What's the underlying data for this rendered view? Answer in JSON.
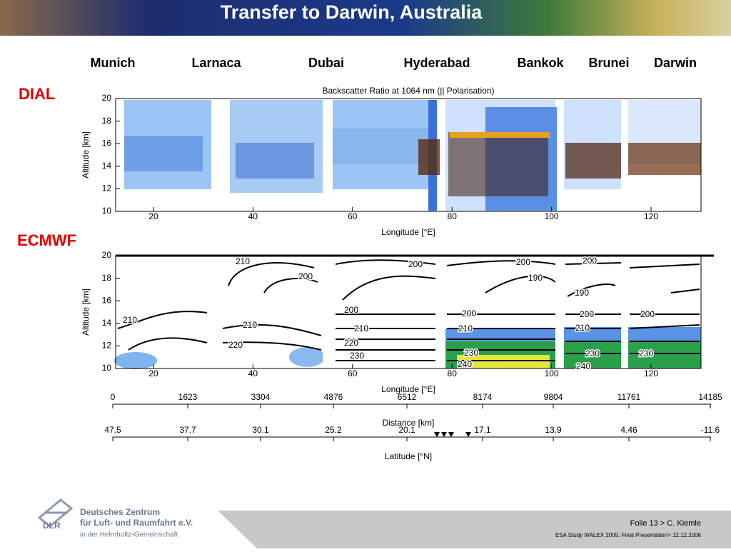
{
  "header": {
    "title": "Transfer to Darwin, Australia"
  },
  "cities": [
    "Munich",
    "Larnaca",
    "Dubai",
    "Hyderabad",
    "Bankok",
    "Brunei",
    "Darwin"
  ],
  "sections": {
    "dial": "DIAL",
    "ecmwf": "ECMWF"
  },
  "dial_plot": {
    "title": "Backscatter Ratio at 1064 nm    (|| Polarisation)",
    "y_label": "Altitude [km]",
    "x_label": "Longitude [°E]",
    "yticks": [
      10,
      12,
      14,
      16,
      18,
      20
    ],
    "xticks": [
      20,
      40,
      60,
      80,
      100,
      120
    ]
  },
  "ecmwf_plot": {
    "y_label": "Altitude [km]",
    "x_label": "Longitude [°E]",
    "yticks": [
      10,
      12,
      14,
      16,
      18,
      20
    ],
    "xticks": [
      20,
      40,
      60,
      80,
      100,
      120
    ],
    "contour_labels": [
      210,
      210,
      200,
      210,
      220,
      200,
      200,
      210,
      220,
      230,
      200,
      210,
      230,
      200,
      190,
      190,
      200,
      200,
      210,
      230,
      240,
      200,
      230,
      240
    ]
  },
  "distance_axis": {
    "label": "Distance [km]",
    "ticks": [
      0,
      1623,
      3304,
      4876,
      6512,
      8174,
      9804,
      11761,
      14185
    ]
  },
  "latitude_axis": {
    "label": "Latitude [°N]",
    "ticks": [
      47.5,
      37.7,
      30.1,
      25.2,
      20.1,
      17.1,
      13.9,
      4.46,
      -11.6
    ]
  },
  "footer": {
    "org_lines": [
      "Deutsches Zentrum",
      "für Luft- und Raumfahrt e.V.",
      "in der Helmholtz-Gemeinschaft"
    ],
    "logo_text": "DLR",
    "slide": "Folie 13 > C. Kiemle",
    "event": "ESA Study WALEX 2005: Final Presentation> 12.12.2006"
  }
}
